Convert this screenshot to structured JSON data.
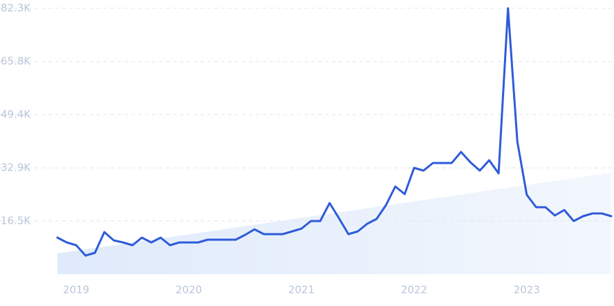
{
  "chart_data": {
    "type": "line",
    "categories": [
      null,
      null,
      "2019",
      null,
      null,
      null,
      null,
      null,
      null,
      null,
      null,
      null,
      null,
      null,
      "2020",
      null,
      null,
      null,
      null,
      null,
      null,
      null,
      null,
      null,
      null,
      null,
      "2021",
      null,
      null,
      null,
      null,
      null,
      null,
      null,
      null,
      null,
      null,
      null,
      "2022",
      null,
      null,
      null,
      null,
      null,
      null,
      null,
      null,
      null,
      null,
      null,
      "2023",
      null,
      null,
      null,
      null,
      null,
      null,
      null,
      null,
      null
    ],
    "values": [
      11330,
      9830,
      8980,
      5770,
      6630,
      13040,
      10470,
      9830,
      8980,
      11330,
      9830,
      11330,
      8980,
      9830,
      9830,
      9830,
      10690,
      10690,
      10690,
      10690,
      12190,
      13900,
      12400,
      12400,
      12400,
      13250,
      14110,
      16460,
      16460,
      22020,
      17320,
      12400,
      13250,
      15610,
      17100,
      21380,
      27150,
      24800,
      32920,
      32070,
      34420,
      34420,
      34420,
      37840,
      34630,
      32070,
      35270,
      31210,
      82300,
      41040,
      24580,
      20740,
      20740,
      18170,
      19880,
      16460,
      17960,
      18810,
      18810,
      17960
    ],
    "color": "#2e5bd9",
    "ylim": [
      0,
      82300
    ],
    "yticks": [
      {
        "value": 16500,
        "label": "16.5K"
      },
      {
        "value": 32900,
        "label": "32.9K"
      },
      {
        "value": 49400,
        "label": "49.4K"
      },
      {
        "value": 65800,
        "label": "65.8K"
      },
      {
        "value": 82300,
        "label": "82.3K"
      }
    ],
    "grid": true
  }
}
